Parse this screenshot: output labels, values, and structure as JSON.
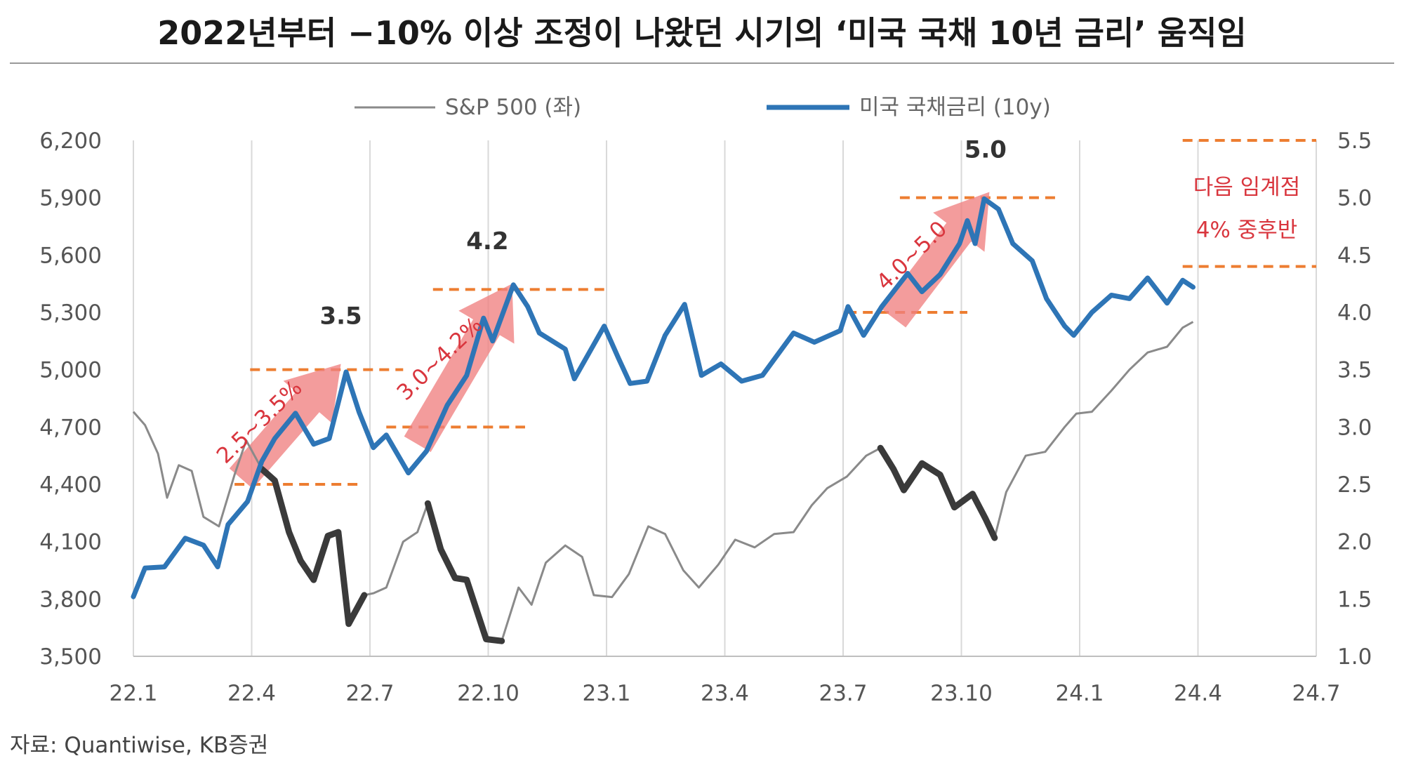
{
  "title": "2022년부터 −10% 이상 조정이 나왔던 시기의 ‘미국 국채 10년 금리’ 움직임",
  "source": "자료: Quantiwise, KB증권",
  "colors": {
    "spx": "#8a8a8a",
    "spx_highlight": "#3a3a3a",
    "yield": "#2e75b6",
    "yield_light": "#8fb3d9",
    "dash": "#ed7d31",
    "arrow": "#f08080",
    "annotation": "#d9363e"
  },
  "chart_data": {
    "type": "line",
    "x_tick_labels": [
      "22.1",
      "22.4",
      "22.7",
      "22.10",
      "23.1",
      "23.4",
      "23.7",
      "23.10",
      "24.1",
      "24.4",
      "24.7"
    ],
    "x_range": [
      "2022-01-01",
      "2024-07-01"
    ],
    "y_left": {
      "ticks": [
        "3,500",
        "3,800",
        "4,100",
        "4,400",
        "4,700",
        "5,000",
        "5,300",
        "5,600",
        "5,900",
        "6,200"
      ],
      "range": [
        3500,
        6200
      ]
    },
    "y_right": {
      "ticks": [
        "1.0",
        "1.5",
        "2.0",
        "2.5",
        "3.0",
        "3.5",
        "4.0",
        "4.5",
        "5.0",
        "5.5"
      ],
      "range": [
        1.0,
        5.5
      ]
    },
    "legend_position": "top-center",
    "series": [
      {
        "name": "S&P 500 (좌)",
        "axis": "left",
        "points": [
          [
            "2022-01-01",
            4780
          ],
          [
            "2022-01-10",
            4710
          ],
          [
            "2022-01-20",
            4560
          ],
          [
            "2022-01-27",
            4330
          ],
          [
            "2022-02-05",
            4500
          ],
          [
            "2022-02-15",
            4470
          ],
          [
            "2022-02-24",
            4230
          ],
          [
            "2022-03-08",
            4180
          ],
          [
            "2022-03-20",
            4450
          ],
          [
            "2022-03-29",
            4630
          ],
          [
            "2022-04-10",
            4480
          ],
          [
            "2022-04-20",
            4420
          ],
          [
            "2022-05-01",
            4150
          ],
          [
            "2022-05-10",
            4000
          ],
          [
            "2022-05-20",
            3900
          ],
          [
            "2022-05-31",
            4130
          ],
          [
            "2022-06-08",
            4150
          ],
          [
            "2022-06-16",
            3670
          ],
          [
            "2022-06-28",
            3820
          ],
          [
            "2022-07-05",
            3830
          ],
          [
            "2022-07-15",
            3860
          ],
          [
            "2022-07-28",
            4100
          ],
          [
            "2022-08-08",
            4150
          ],
          [
            "2022-08-16",
            4300
          ],
          [
            "2022-08-26",
            4060
          ],
          [
            "2022-09-06",
            3910
          ],
          [
            "2022-09-15",
            3900
          ],
          [
            "2022-09-30",
            3590
          ],
          [
            "2022-10-12",
            3580
          ],
          [
            "2022-10-25",
            3860
          ],
          [
            "2022-11-04",
            3770
          ],
          [
            "2022-11-15",
            3990
          ],
          [
            "2022-11-30",
            4080
          ],
          [
            "2022-12-13",
            4020
          ],
          [
            "2022-12-22",
            3820
          ],
          [
            "2023-01-05",
            3810
          ],
          [
            "2023-01-18",
            3930
          ],
          [
            "2023-02-02",
            4180
          ],
          [
            "2023-02-15",
            4140
          ],
          [
            "2023-03-01",
            3950
          ],
          [
            "2023-03-13",
            3860
          ],
          [
            "2023-03-28",
            3980
          ],
          [
            "2023-04-10",
            4110
          ],
          [
            "2023-04-25",
            4070
          ],
          [
            "2023-05-10",
            4140
          ],
          [
            "2023-05-25",
            4150
          ],
          [
            "2023-06-08",
            4290
          ],
          [
            "2023-06-20",
            4380
          ],
          [
            "2023-07-05",
            4440
          ],
          [
            "2023-07-20",
            4550
          ],
          [
            "2023-07-31",
            4590
          ],
          [
            "2023-08-10",
            4480
          ],
          [
            "2023-08-18",
            4370
          ],
          [
            "2023-09-01",
            4510
          ],
          [
            "2023-09-15",
            4450
          ],
          [
            "2023-09-26",
            4280
          ],
          [
            "2023-10-10",
            4350
          ],
          [
            "2023-10-20",
            4220
          ],
          [
            "2023-10-27",
            4120
          ],
          [
            "2023-11-05",
            4360
          ],
          [
            "2023-11-20",
            4550
          ],
          [
            "2023-12-05",
            4570
          ],
          [
            "2023-12-20",
            4700
          ],
          [
            "2023-12-29",
            4770
          ],
          [
            "2024-01-10",
            4780
          ],
          [
            "2024-01-25",
            4890
          ],
          [
            "2024-02-08",
            5000
          ],
          [
            "2024-02-22",
            5090
          ],
          [
            "2024-03-08",
            5120
          ],
          [
            "2024-03-20",
            5220
          ],
          [
            "2024-03-28",
            5250
          ]
        ]
      },
      {
        "name": "미국 국채금리 (10y)",
        "axis": "right",
        "points": [
          [
            "2022-01-01",
            1.52
          ],
          [
            "2022-01-10",
            1.77
          ],
          [
            "2022-01-25",
            1.78
          ],
          [
            "2022-02-10",
            2.03
          ],
          [
            "2022-02-24",
            1.97
          ],
          [
            "2022-03-07",
            1.78
          ],
          [
            "2022-03-15",
            2.15
          ],
          [
            "2022-03-30",
            2.35
          ],
          [
            "2022-04-10",
            2.7
          ],
          [
            "2022-04-20",
            2.9
          ],
          [
            "2022-05-06",
            3.12
          ],
          [
            "2022-05-20",
            2.85
          ],
          [
            "2022-06-01",
            2.9
          ],
          [
            "2022-06-14",
            3.48
          ],
          [
            "2022-06-24",
            3.13
          ],
          [
            "2022-07-05",
            2.82
          ],
          [
            "2022-07-15",
            2.93
          ],
          [
            "2022-08-01",
            2.6
          ],
          [
            "2022-08-15",
            2.79
          ],
          [
            "2022-08-31",
            3.19
          ],
          [
            "2022-09-15",
            3.45
          ],
          [
            "2022-09-28",
            3.95
          ],
          [
            "2022-10-05",
            3.75
          ],
          [
            "2022-10-21",
            4.24
          ],
          [
            "2022-11-01",
            4.05
          ],
          [
            "2022-11-10",
            3.82
          ],
          [
            "2022-11-30",
            3.68
          ],
          [
            "2022-12-07",
            3.42
          ],
          [
            "2022-12-20",
            3.68
          ],
          [
            "2022-12-30",
            3.88
          ],
          [
            "2023-01-10",
            3.6
          ],
          [
            "2023-01-19",
            3.38
          ],
          [
            "2023-02-01",
            3.4
          ],
          [
            "2023-02-15",
            3.8
          ],
          [
            "2023-03-02",
            4.07
          ],
          [
            "2023-03-15",
            3.45
          ],
          [
            "2023-03-30",
            3.55
          ],
          [
            "2023-04-15",
            3.4
          ],
          [
            "2023-05-01",
            3.45
          ],
          [
            "2023-05-25",
            3.82
          ],
          [
            "2023-06-10",
            3.74
          ],
          [
            "2023-06-30",
            3.84
          ],
          [
            "2023-07-06",
            4.05
          ],
          [
            "2023-07-18",
            3.8
          ],
          [
            "2023-08-01",
            4.05
          ],
          [
            "2023-08-21",
            4.34
          ],
          [
            "2023-09-01",
            4.18
          ],
          [
            "2023-09-15",
            4.33
          ],
          [
            "2023-09-30",
            4.6
          ],
          [
            "2023-10-06",
            4.8
          ],
          [
            "2023-10-12",
            4.6
          ],
          [
            "2023-10-19",
            4.99
          ],
          [
            "2023-10-30",
            4.9
          ],
          [
            "2023-11-10",
            4.6
          ],
          [
            "2023-11-25",
            4.45
          ],
          [
            "2023-12-06",
            4.12
          ],
          [
            "2023-12-20",
            3.88
          ],
          [
            "2023-12-27",
            3.8
          ],
          [
            "2024-01-10",
            4.0
          ],
          [
            "2024-01-25",
            4.15
          ],
          [
            "2024-02-08",
            4.12
          ],
          [
            "2024-02-22",
            4.3
          ],
          [
            "2024-03-08",
            4.08
          ],
          [
            "2024-03-20",
            4.28
          ],
          [
            "2024-03-28",
            4.22
          ]
        ]
      }
    ],
    "highlight_periods_spx": [
      [
        "2022-04-01",
        "2022-06-28"
      ],
      [
        "2022-08-16",
        "2022-10-12"
      ],
      [
        "2023-07-31",
        "2023-10-27"
      ]
    ],
    "reference_lines": [
      {
        "value": 2.5,
        "from": "2022-03-20",
        "to": "2022-06-25"
      },
      {
        "value": 3.5,
        "from": "2022-04-01",
        "to": "2022-07-28"
      },
      {
        "value": 3.0,
        "from": "2022-07-15",
        "to": "2022-10-30"
      },
      {
        "value": 4.2,
        "from": "2022-08-20",
        "to": "2022-12-30"
      },
      {
        "value": 4.0,
        "from": "2023-07-05",
        "to": "2023-10-06"
      },
      {
        "value": 5.0,
        "from": "2023-08-15",
        "to": "2023-12-15"
      },
      {
        "value": 5.5,
        "from": "2024-03-20",
        "to": "2024-07-01"
      },
      {
        "value": 4.4,
        "from": "2024-03-20",
        "to": "2024-07-01"
      }
    ],
    "arrows": [
      {
        "from": [
          "2022-03-25",
          2.55
        ],
        "to": [
          "2022-06-10",
          3.55
        ]
      },
      {
        "from": [
          "2022-08-08",
          2.85
        ],
        "to": [
          "2022-10-20",
          4.25
        ]
      },
      {
        "from": [
          "2023-08-10",
          3.95
        ],
        "to": [
          "2023-10-23",
          5.05
        ]
      }
    ],
    "peak_labels": [
      {
        "text": "3.5",
        "x": "2022-06-10",
        "y": 3.9
      },
      {
        "text": "4.2",
        "x": "2022-10-01",
        "y": 4.55
      },
      {
        "text": "5.0",
        "x": "2023-10-20",
        "y": 5.35
      }
    ],
    "band_labels": [
      {
        "text": "2.5~3.5%",
        "x": "2022-04-12",
        "y": 3.0
      },
      {
        "text": "3.0~4.2%",
        "x": "2022-08-29",
        "y": 3.55
      },
      {
        "text": "4.0~5.0",
        "x": "2023-08-28",
        "y": 4.45
      }
    ],
    "note_lines": [
      "다음 임계점",
      "4% 중후반"
    ]
  }
}
